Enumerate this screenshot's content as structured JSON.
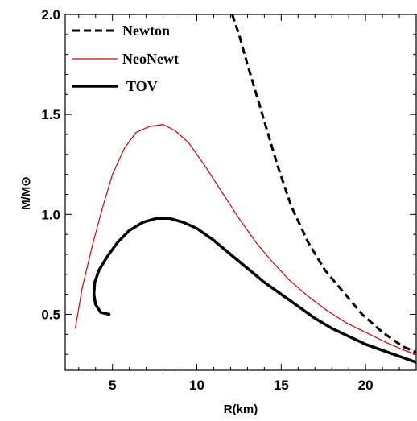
{
  "chart_data": {
    "type": "line",
    "xlabel": "R(km)",
    "ylabel": "M/M⊙",
    "xlim": [
      2.2,
      23
    ],
    "ylim": [
      0.22,
      2.0
    ],
    "xticks": [
      5,
      10,
      15,
      20
    ],
    "yticks": [
      0.5,
      1.0,
      1.5,
      2.0
    ],
    "xtick_labels": [
      "5",
      "10",
      "15",
      "20"
    ],
    "ytick_labels": [
      "0.5",
      "1.0",
      "1.5",
      "2.0"
    ],
    "grid": false,
    "legend_position": "top-left",
    "series": [
      {
        "name": "Newton",
        "style": "dashed",
        "color": "#000000",
        "x": [
          12.1,
          12.5,
          13.0,
          13.6,
          14.2,
          14.8,
          15.6,
          16.6,
          17.6,
          18.7,
          19.8,
          21.0,
          22.2,
          23.0
        ],
        "y": [
          2.0,
          1.9,
          1.75,
          1.58,
          1.41,
          1.24,
          1.04,
          0.86,
          0.72,
          0.61,
          0.5,
          0.41,
          0.34,
          0.31
        ]
      },
      {
        "name": "NeoNewt",
        "style": "solid-thin",
        "color": "#dd0000",
        "x": [
          2.8,
          3.2,
          3.8,
          4.4,
          5.0,
          5.7,
          6.4,
          7.2,
          8.0,
          8.7,
          9.5,
          10.5,
          11.5,
          12.5,
          13.5,
          14.5,
          15.5,
          16.6,
          17.7,
          18.8,
          20.0,
          21.2,
          22.3,
          23.0
        ],
        "y": [
          0.43,
          0.63,
          0.84,
          1.03,
          1.2,
          1.33,
          1.41,
          1.44,
          1.45,
          1.42,
          1.36,
          1.24,
          1.11,
          0.98,
          0.86,
          0.76,
          0.67,
          0.59,
          0.52,
          0.46,
          0.41,
          0.36,
          0.32,
          0.3
        ]
      },
      {
        "name": "TOV",
        "style": "solid-thick",
        "color": "#000000",
        "x": [
          4.8,
          4.3,
          4.0,
          3.9,
          3.95,
          4.2,
          4.7,
          5.3,
          6.0,
          6.8,
          7.6,
          8.4,
          9.2,
          10.0,
          11.0,
          12.0,
          13.0,
          14.0,
          15.0,
          16.0,
          17.0,
          18.0,
          19.0,
          20.0,
          21.0,
          22.0,
          23.0
        ],
        "y": [
          0.5,
          0.51,
          0.55,
          0.6,
          0.66,
          0.72,
          0.79,
          0.86,
          0.92,
          0.96,
          0.98,
          0.98,
          0.96,
          0.93,
          0.87,
          0.8,
          0.73,
          0.66,
          0.6,
          0.54,
          0.48,
          0.43,
          0.39,
          0.35,
          0.32,
          0.29,
          0.26
        ]
      }
    ]
  }
}
